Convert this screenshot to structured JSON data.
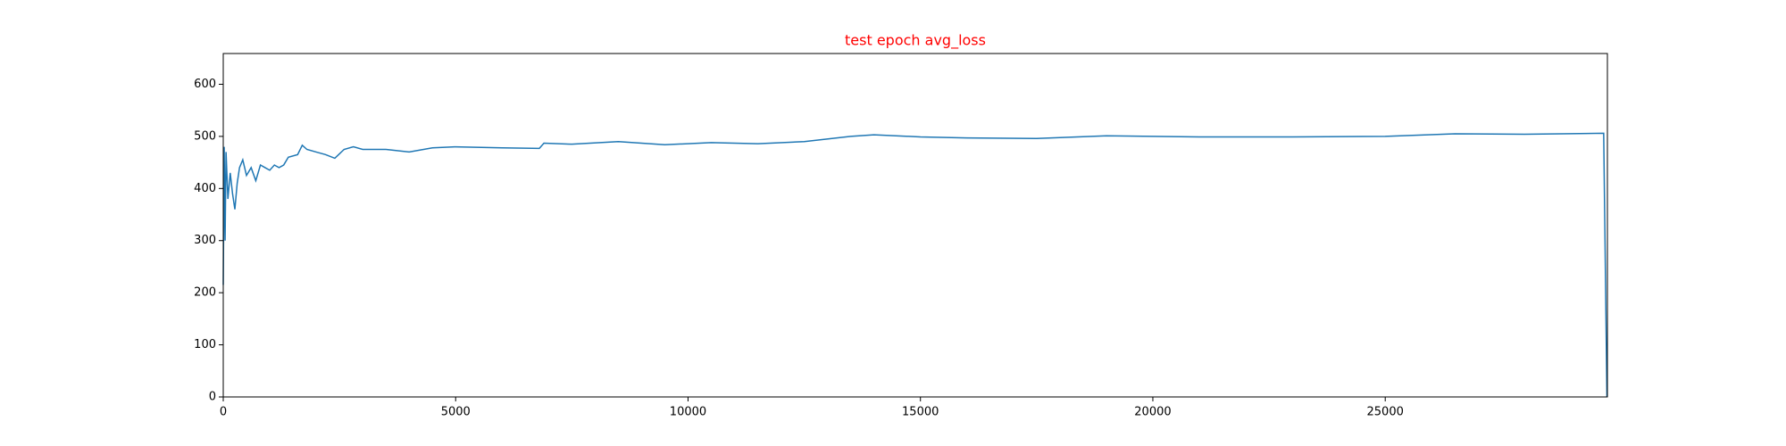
{
  "chart_data": {
    "type": "line",
    "title": "test epoch avg_loss",
    "title_color": "#ff0000",
    "x": [
      0,
      20,
      40,
      60,
      100,
      150,
      200,
      250,
      300,
      350,
      420,
      500,
      600,
      700,
      800,
      900,
      1000,
      1100,
      1200,
      1300,
      1400,
      1600,
      1700,
      1800,
      2000,
      2200,
      2400,
      2600,
      2800,
      3000,
      3500,
      4000,
      4500,
      5000,
      6000,
      6800,
      6900,
      7500,
      8500,
      9500,
      10500,
      11500,
      12500,
      13500,
      14000,
      15000,
      16000,
      17500,
      19000,
      21000,
      23000,
      25000,
      26500,
      28000,
      29700,
      29770
    ],
    "series": [
      {
        "name": "avg_loss",
        "color": "#1f77b4",
        "values": [
          215,
          480,
          300,
          470,
          380,
          430,
          390,
          360,
          410,
          440,
          455,
          425,
          440,
          415,
          445,
          440,
          435,
          445,
          440,
          445,
          460,
          465,
          483,
          475,
          470,
          465,
          458,
          475,
          480,
          475,
          475,
          470,
          478,
          480,
          478,
          477,
          487,
          485,
          490,
          484,
          488,
          486,
          490,
          500,
          503,
          499,
          497,
          496,
          501,
          499,
          499,
          500,
          505,
          504,
          506,
          0
        ]
      }
    ],
    "xlim": [
      0,
      29780
    ],
    "ylim": [
      0,
      659
    ],
    "xticks": [
      0,
      5000,
      10000,
      15000,
      20000,
      25000
    ],
    "yticks": [
      0,
      100,
      200,
      300,
      400,
      500,
      600
    ]
  }
}
